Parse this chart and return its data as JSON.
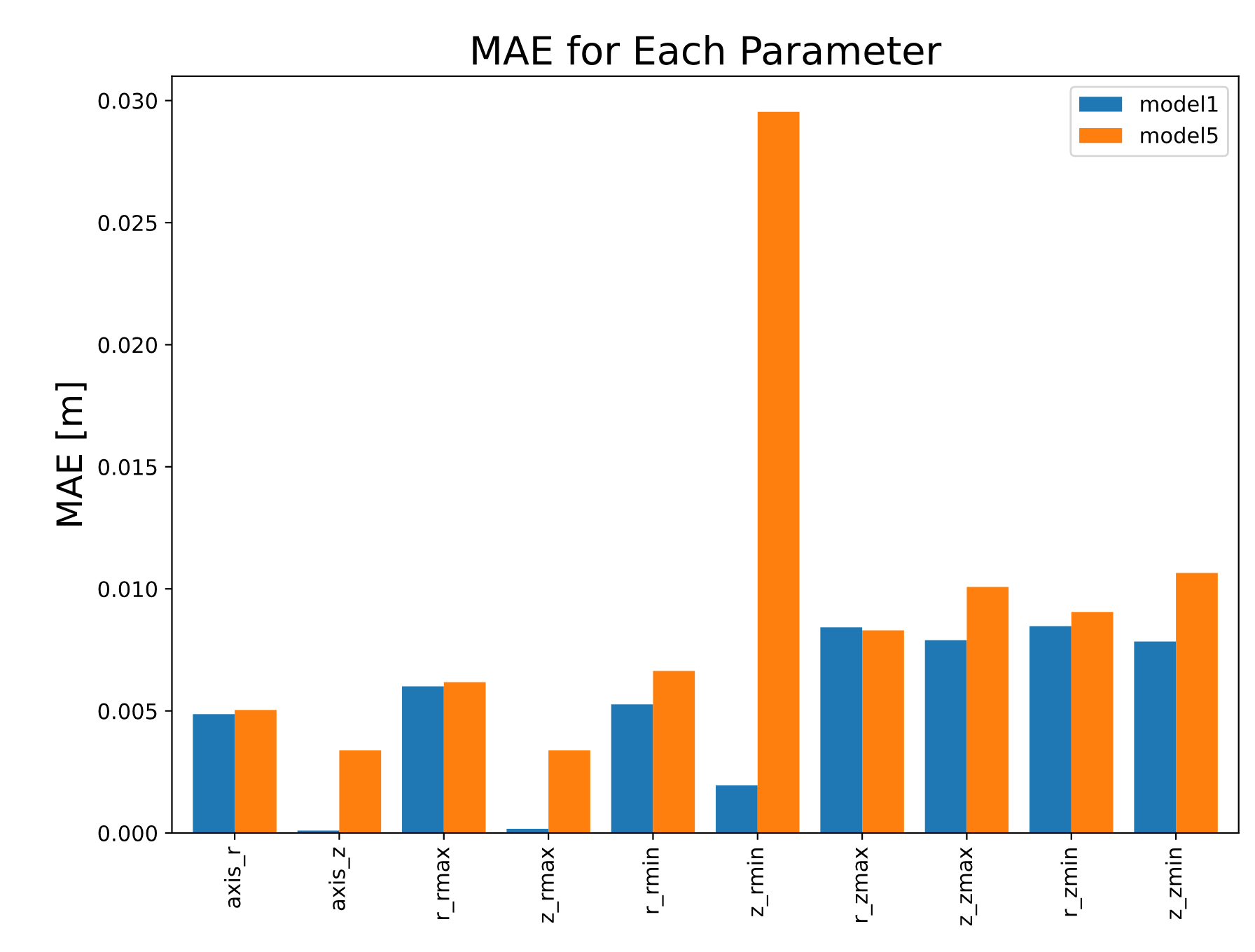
{
  "chart_data": {
    "type": "bar",
    "title": "MAE for Each Parameter",
    "ylabel": "MAE [m]",
    "categories": [
      "axis_r",
      "axis_z",
      "r_rmax",
      "z_rmax",
      "r_rmin",
      "z_rmin",
      "r_zmax",
      "z_zmax",
      "r_zmin",
      "z_zmin"
    ],
    "series": [
      {
        "name": "model1",
        "color": "#1f77b4",
        "values": [
          0.00487,
          0.0001,
          0.00601,
          0.00017,
          0.00527,
          0.00195,
          0.00842,
          0.0079,
          0.00847,
          0.00784
        ]
      },
      {
        "name": "model5",
        "color": "#ff7f0e",
        "values": [
          0.00504,
          0.00338,
          0.00618,
          0.00338,
          0.00664,
          0.02954,
          0.0083,
          0.01008,
          0.00905,
          0.01065
        ]
      }
    ],
    "ylim": [
      0,
      0.031
    ],
    "yticks": [
      {
        "value": 0,
        "label": "0.000"
      },
      {
        "value": 0.005,
        "label": "0.005"
      },
      {
        "value": 0.01,
        "label": "0.010"
      },
      {
        "value": 0.015,
        "label": "0.015"
      },
      {
        "value": 0.02,
        "label": "0.020"
      },
      {
        "value": 0.025,
        "label": "0.025"
      },
      {
        "value": 0.03,
        "label": "0.030"
      }
    ],
    "legend": "top right",
    "grid": false
  }
}
